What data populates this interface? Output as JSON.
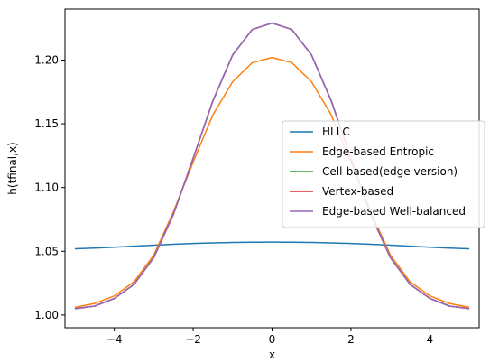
{
  "chart_data": {
    "type": "line",
    "title": "",
    "xlabel": "x",
    "ylabel": "h(tfinal,x)",
    "xlim": [
      -5.25,
      5.25
    ],
    "ylim": [
      0.99,
      1.24
    ],
    "xticks": [
      -4,
      -2,
      0,
      2,
      4
    ],
    "xtick_labels": [
      "−4",
      "−2",
      "0",
      "2",
      "4"
    ],
    "yticks": [
      1.0,
      1.05,
      1.1,
      1.15,
      1.2
    ],
    "ytick_labels": [
      "1.00",
      "1.05",
      "1.10",
      "1.15",
      "1.20"
    ],
    "grid": false,
    "legend_position": "center-right",
    "x": [
      -5,
      -4.5,
      -4,
      -3.5,
      -3,
      -2.5,
      -2,
      -1.5,
      -1,
      -0.5,
      0,
      0.5,
      1,
      1.5,
      2,
      2.5,
      3,
      3.5,
      4,
      4.5,
      5
    ],
    "series": [
      {
        "name": "HLLC",
        "color": "#1f77b4",
        "values": [
          1.052,
          1.0525,
          1.0532,
          1.054,
          1.0548,
          1.0555,
          1.0561,
          1.0566,
          1.0569,
          1.0571,
          1.0572,
          1.0571,
          1.0569,
          1.0566,
          1.0561,
          1.0555,
          1.0548,
          1.054,
          1.0532,
          1.0525,
          1.052
        ]
      },
      {
        "name": "Edge-based Entropic",
        "color": "#ff7f0e",
        "values": [
          1.006,
          1.009,
          1.015,
          1.026,
          1.047,
          1.081,
          1.12,
          1.157,
          1.183,
          1.198,
          1.202,
          1.198,
          1.183,
          1.157,
          1.12,
          1.081,
          1.047,
          1.026,
          1.015,
          1.009,
          1.006
        ]
      },
      {
        "name": "Cell-based(edge version)",
        "color": "#2ca02c",
        "values": [
          1.005,
          1.007,
          1.013,
          1.024,
          1.045,
          1.079,
          1.123,
          1.168,
          1.204,
          1.224,
          1.229,
          1.224,
          1.204,
          1.168,
          1.123,
          1.079,
          1.045,
          1.024,
          1.013,
          1.007,
          1.005
        ]
      },
      {
        "name": "Vertex-based",
        "color": "#d62728",
        "values": [
          1.005,
          1.007,
          1.013,
          1.024,
          1.045,
          1.079,
          1.123,
          1.168,
          1.204,
          1.224,
          1.229,
          1.224,
          1.204,
          1.168,
          1.123,
          1.079,
          1.045,
          1.024,
          1.013,
          1.007,
          1.005
        ]
      },
      {
        "name": "Edge-based Well-balanced",
        "color": "#9467bd",
        "values": [
          1.005,
          1.007,
          1.013,
          1.024,
          1.045,
          1.079,
          1.123,
          1.168,
          1.204,
          1.224,
          1.229,
          1.224,
          1.204,
          1.168,
          1.123,
          1.079,
          1.045,
          1.024,
          1.013,
          1.007,
          1.005
        ]
      }
    ]
  }
}
